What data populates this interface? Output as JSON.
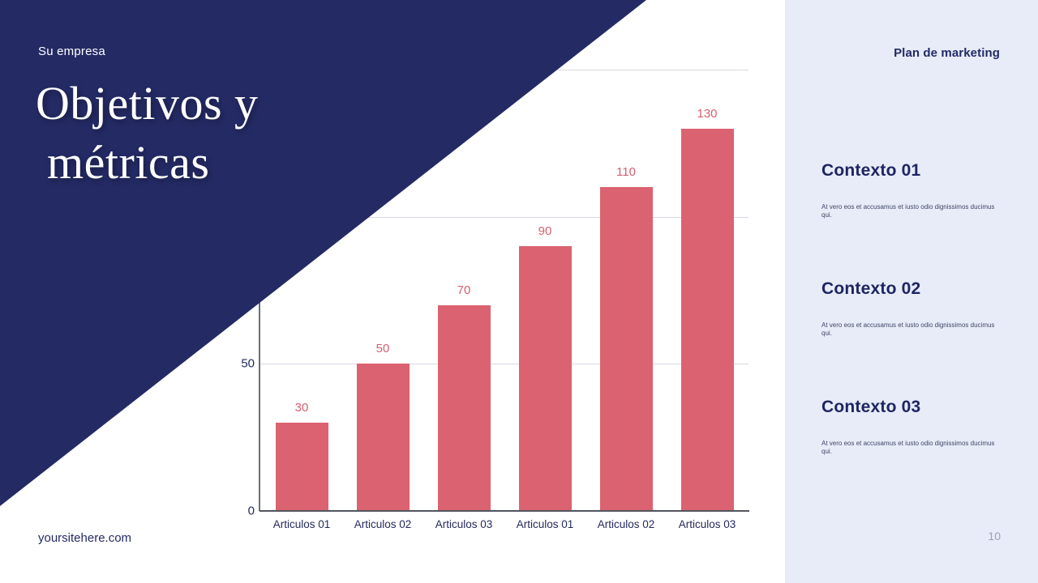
{
  "slide": {
    "eyebrow": "Su empresa",
    "title_line1": "Objetivos y",
    "title_line2": "métricas",
    "footer_url": "yoursitehere.com",
    "page_number": "10"
  },
  "sidebar": {
    "header": "Plan de marketing",
    "sections": [
      {
        "heading": "Contexto 01",
        "body": "At vero eos et accusamus et iusto odio dignissimos ducimus qui."
      },
      {
        "heading": "Contexto 02",
        "body": "At vero eos et accusamus et iusto odio dignissimos ducimus qui."
      },
      {
        "heading": "Contexto 03",
        "body": "At vero eos et accusamus et iusto odio dignissimos ducimus qui."
      }
    ]
  },
  "chart_data": {
    "type": "bar",
    "categories": [
      "Articulos 01",
      "Articulos 02",
      "Articulos 03",
      "Articulos 01",
      "Articulos 02",
      "Articulos 03"
    ],
    "values": [
      30,
      50,
      70,
      90,
      110,
      130
    ],
    "title": "",
    "xlabel": "",
    "ylabel": "",
    "ylim": [
      0,
      150
    ],
    "gridlines": [
      50,
      100,
      150
    ],
    "yticks": [
      {
        "label": "50",
        "value": 50
      },
      {
        "label": "0",
        "value": 0
      }
    ],
    "grid_on": true,
    "legend": "none",
    "bar_color": "#db6270",
    "value_label_color": "#d55f70"
  },
  "colors": {
    "navy": "#242a64",
    "sidebar_bg": "#e8ecf8",
    "bar": "#db6270",
    "gridline": "#d8d9e2"
  }
}
